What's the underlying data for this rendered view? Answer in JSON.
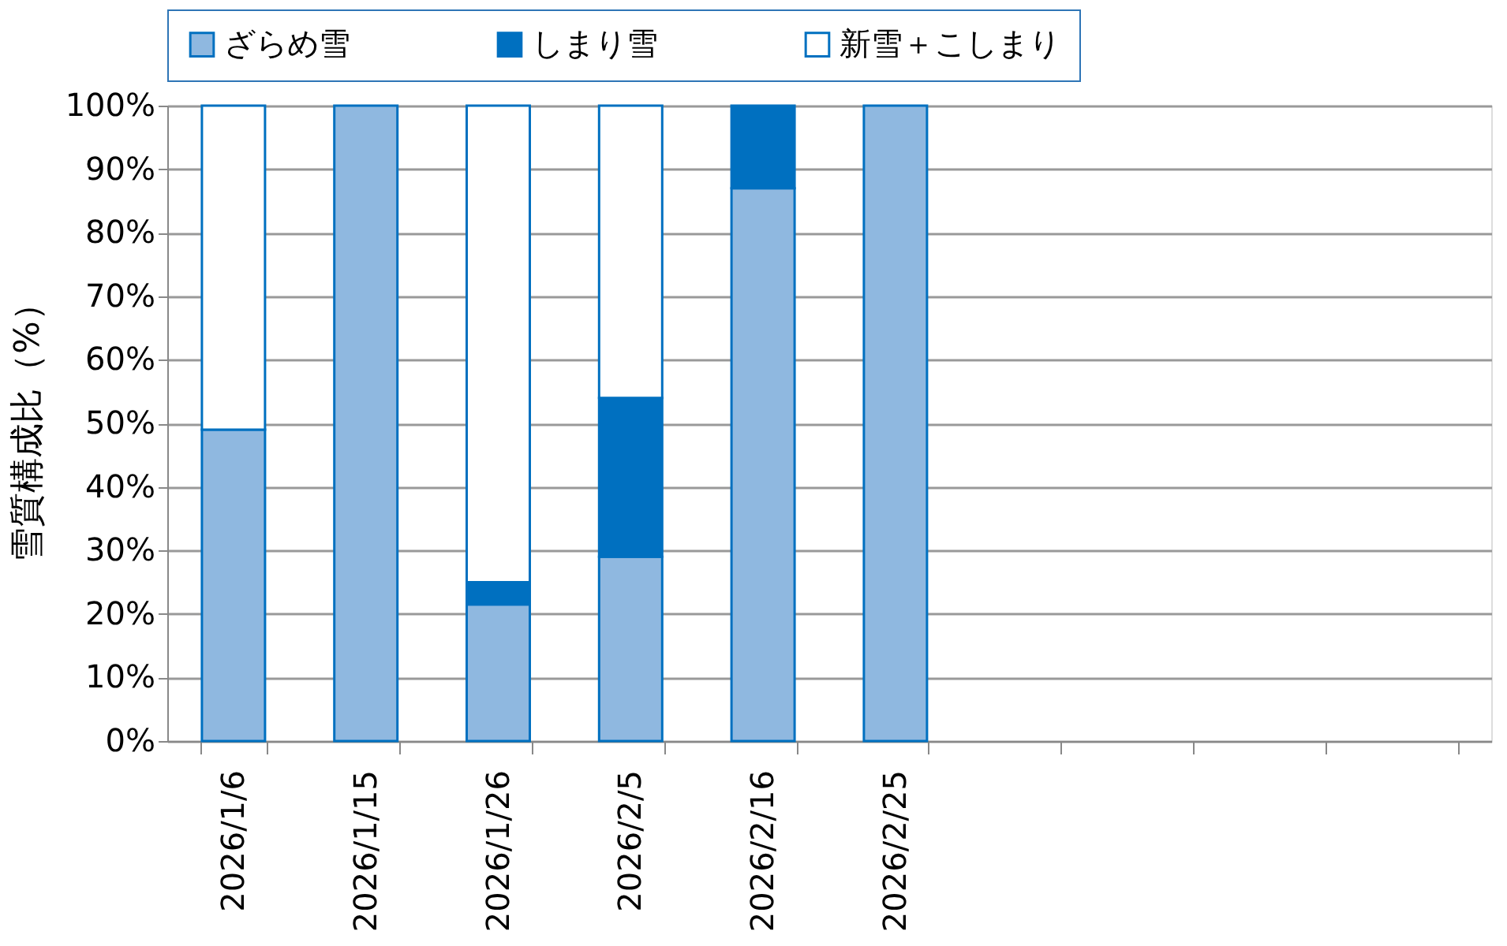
{
  "chart_data": {
    "type": "bar",
    "stacked": true,
    "ylabel": "雪質構成比（%）",
    "categories": [
      "2026/1/6",
      "2026/1/15",
      "2026/1/26",
      "2026/2/5",
      "2026/2/16",
      "2026/2/25",
      null,
      null,
      null,
      null
    ],
    "series": [
      {
        "name": "ざらめ雪",
        "color": "#8fb8e0",
        "values": [
          49,
          100,
          21.5,
          29,
          87,
          100,
          null,
          null,
          null,
          null
        ]
      },
      {
        "name": "しまり雪",
        "color": "#0070c0",
        "values": [
          0,
          0,
          3.5,
          25,
          13,
          0,
          null,
          null,
          null,
          null
        ]
      },
      {
        "name": "新雪＋こしまり",
        "color": "#ffffff",
        "values": [
          51,
          0,
          75,
          46,
          0,
          0,
          null,
          null,
          null,
          null
        ]
      }
    ],
    "ylim": [
      0,
      100
    ],
    "yticks": [
      {
        "value": 0,
        "label": "0%"
      },
      {
        "value": 10,
        "label": "10%"
      },
      {
        "value": 20,
        "label": "20%"
      },
      {
        "value": 30,
        "label": "30%"
      },
      {
        "value": 40,
        "label": "40%"
      },
      {
        "value": 50,
        "label": "50%"
      },
      {
        "value": 60,
        "label": "60%"
      },
      {
        "value": 70,
        "label": "70%"
      },
      {
        "value": 80,
        "label": "80%"
      },
      {
        "value": 90,
        "label": "90%"
      },
      {
        "value": 100,
        "label": "100%"
      }
    ],
    "grid": "y",
    "legend": "top"
  }
}
